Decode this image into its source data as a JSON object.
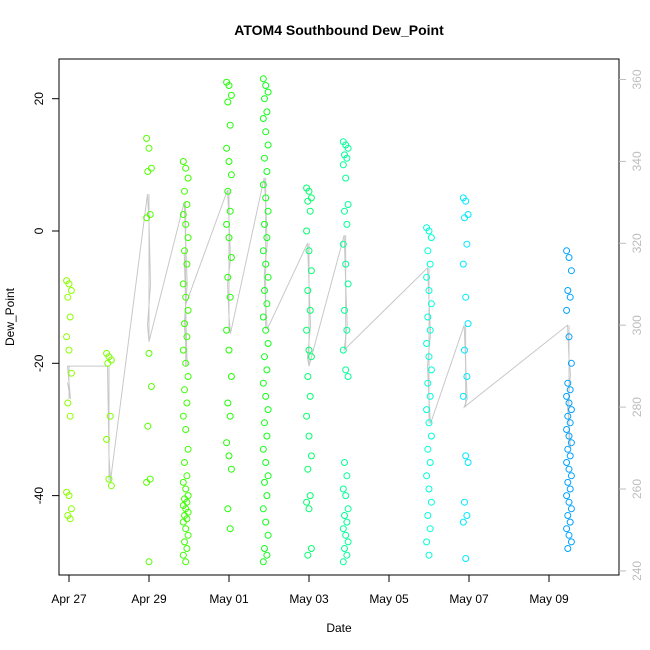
{
  "chart_data": {
    "type": "scatter",
    "title": "ATOM4 Southbound Dew_Point",
    "xlabel": "Date",
    "ylabel": "Dew_Point",
    "x_axis": {
      "kind": "date",
      "range": [
        "2023-04-26T18:00",
        "2023-05-10T18:00"
      ],
      "ticks": [
        {
          "date": "2023-04-27",
          "label": "Apr 27"
        },
        {
          "date": "2023-04-29",
          "label": "Apr 29"
        },
        {
          "date": "2023-05-01",
          "label": "May 01"
        },
        {
          "date": "2023-05-03",
          "label": "May 03"
        },
        {
          "date": "2023-05-05",
          "label": "May 05"
        },
        {
          "date": "2023-05-07",
          "label": "May 07"
        },
        {
          "date": "2023-05-09",
          "label": "May 09"
        }
      ]
    },
    "y_axis_left": {
      "range": [
        -52,
        26
      ],
      "ticks": [
        20,
        0,
        -20,
        -40
      ],
      "tick_labels": [
        "20",
        "0",
        "-20",
        "-40"
      ]
    },
    "y_axis_right": {
      "range": [
        239,
        365
      ],
      "ticks": [
        240,
        260,
        280,
        300,
        320,
        340,
        360
      ],
      "tick_labels": [
        "240",
        "260",
        "280",
        "300",
        "320",
        "340",
        "360"
      ],
      "color": "#bdbdbd"
    },
    "trace_color": "#c8c8c8",
    "legend": "none",
    "grid": false,
    "groups": [
      {
        "date": "2023-04-27T00:00",
        "color": "#8cff00",
        "dew_points": [
          -7.5,
          -8,
          -9,
          -10,
          -13,
          -16,
          -18,
          -21.5,
          -26,
          -28,
          -39.5,
          -40,
          -42,
          -43,
          -43.5
        ],
        "direction": [
          286,
          284,
          282,
          290
        ]
      },
      {
        "date": "2023-04-28T00:00",
        "color": "#7dff00",
        "dew_points": [
          -18.5,
          -19,
          -19.5,
          -20,
          -28,
          -31.5,
          -37.5,
          -38.5
        ],
        "direction": [
          290,
          268,
          262
        ]
      },
      {
        "date": "2023-04-29T00:00",
        "color": "#55ff00",
        "dew_points": [
          14,
          12.5,
          9.5,
          9,
          2.5,
          2,
          -18.5,
          -23.5,
          -29.5,
          -37.5,
          -38,
          -50
        ],
        "direction": [
          332,
          325,
          310,
          300,
          296
        ]
      },
      {
        "date": "2023-04-29T22:00",
        "color": "#3cff00",
        "dew_points": [
          10.5,
          9.5,
          8,
          6,
          4,
          2.5,
          1,
          -1,
          -3,
          -5,
          -8,
          -10,
          -12,
          -14,
          -16,
          -18,
          -20,
          -22,
          -24,
          -26,
          -28,
          -30,
          -33,
          -35,
          -37,
          -38,
          -39,
          -40,
          -40.5,
          -41,
          -41.5,
          -42,
          -42.5,
          -43,
          -43.5,
          -44,
          -45,
          -46,
          -47,
          -48,
          -49,
          -50
        ],
        "direction": [
          330,
          320,
          310,
          300,
          296,
          290,
          318,
          305
        ]
      },
      {
        "date": "2023-05-01T00:00",
        "color": "#1eff00",
        "dew_points": [
          22.5,
          22,
          20.5,
          19.5,
          16,
          12.5,
          10.5,
          8.5,
          6,
          3,
          1,
          -1,
          -4,
          -7,
          -10,
          -15,
          -18,
          -22,
          -26,
          -28,
          -32,
          -34,
          -36,
          -42,
          -45
        ],
        "direction": [
          333,
          326,
          316,
          310,
          302,
          298
        ]
      },
      {
        "date": "2023-05-01T22:00",
        "color": "#10ff18",
        "dew_points": [
          23,
          22,
          21,
          20,
          18,
          17,
          15,
          13,
          11,
          9,
          7,
          5,
          3,
          1,
          -1,
          -3,
          -5,
          -7,
          -9,
          -11,
          -13,
          -15,
          -17,
          -19,
          -21,
          -23,
          -25,
          -27,
          -29,
          -31,
          -33,
          -35,
          -37,
          -38,
          -40,
          -42,
          -44,
          -46,
          -48,
          -49,
          -50
        ],
        "direction": [
          336,
          330,
          320,
          312,
          305,
          299
        ]
      },
      {
        "date": "2023-05-03T00:00",
        "color": "#00ff6e",
        "dew_points": [
          6.5,
          6,
          5,
          4.5,
          3,
          0,
          -3,
          -6,
          -9,
          -12,
          -15,
          -18,
          -19,
          -22,
          -25,
          -28,
          -31,
          -34,
          -36,
          -40,
          -41,
          -42,
          -48,
          -49
        ],
        "direction": [
          320,
          310,
          300,
          292,
          290
        ]
      },
      {
        "date": "2023-05-03T22:00",
        "color": "#00ff96",
        "dew_points": [
          13.5,
          13,
          12.5,
          11.5,
          11,
          10,
          8,
          4,
          3,
          1,
          -2,
          -5,
          -8,
          -12,
          -15,
          -18,
          -21,
          -22,
          -35,
          -37,
          -39,
          -40,
          -42,
          -43,
          -44,
          -45,
          -46,
          -47,
          -48,
          -49,
          -50
        ],
        "direction": [
          322,
          310,
          300,
          294
        ]
      },
      {
        "date": "2023-05-06T00:00",
        "color": "#00ffd8",
        "dew_points": [
          0.5,
          0,
          -1,
          -3,
          -5,
          -7,
          -9,
          -11,
          -13,
          -15,
          -17,
          -19,
          -21,
          -23,
          -25,
          -27,
          -29,
          -31,
          -33,
          -35,
          -37,
          -39,
          -41,
          -43,
          -45,
          -47,
          -49
        ],
        "direction": [
          314,
          306,
          298,
          290,
          282,
          276
        ]
      },
      {
        "date": "2023-05-06T22:00",
        "color": "#00e8ff",
        "dew_points": [
          5,
          4.5,
          2.5,
          2,
          -2,
          -5,
          -10,
          -14,
          -18,
          -22,
          -25,
          -34,
          -35,
          -41,
          -43,
          -44,
          -49.5
        ],
        "direction": [
          300,
          290,
          282,
          280
        ]
      },
      {
        "date": "2023-05-09T12:00",
        "color": "#00a2ff",
        "dew_points": [
          -3,
          -4,
          -6,
          -9,
          -10,
          -12,
          -16,
          -20,
          -23,
          -24,
          -25,
          -26,
          -27,
          -28,
          -29,
          -30,
          -31,
          -32,
          -33,
          -34,
          -35,
          -36,
          -37,
          -38,
          -39,
          -40,
          -41,
          -42,
          -43,
          -44,
          -45,
          -46,
          -47,
          -48
        ],
        "direction": [
          300,
          292,
          288,
          280,
          276,
          270
        ]
      }
    ]
  }
}
